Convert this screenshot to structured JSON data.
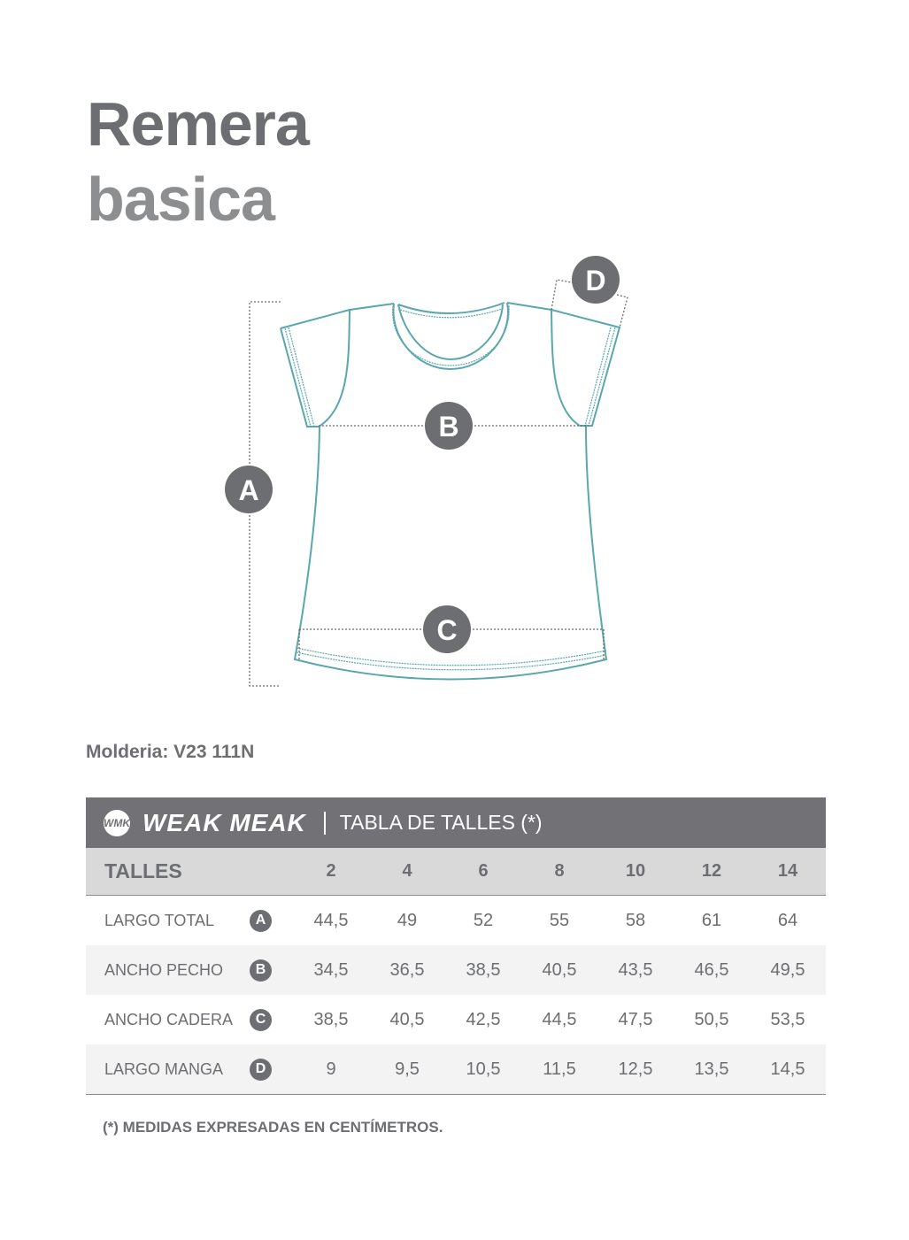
{
  "title": {
    "line1": "Remera",
    "line2": "basica"
  },
  "diagram": {
    "labels": [
      "A",
      "B",
      "C",
      "D"
    ],
    "line_color": "#5aa7ae",
    "badge_color": "#6d6e71"
  },
  "molderia": "Molderia: V23 111N",
  "table": {
    "brand_logo": "WMK",
    "brand": "WEAK MEAK",
    "title": "TABLA DE TALLES (*)",
    "header_label": "TALLES",
    "sizes": [
      "2",
      "4",
      "6",
      "8",
      "10",
      "12",
      "14"
    ],
    "rows": [
      {
        "label": "LARGO TOTAL",
        "badge": "A",
        "values": [
          "44,5",
          "49",
          "52",
          "55",
          "58",
          "61",
          "64"
        ]
      },
      {
        "label": "ANCHO PECHO",
        "badge": "B",
        "values": [
          "34,5",
          "36,5",
          "38,5",
          "40,5",
          "43,5",
          "46,5",
          "49,5"
        ]
      },
      {
        "label": "ANCHO CADERA",
        "badge": "C",
        "values": [
          "38,5",
          "40,5",
          "42,5",
          "44,5",
          "47,5",
          "50,5",
          "53,5"
        ]
      },
      {
        "label": "LARGO MANGA",
        "badge": "D",
        "values": [
          "9",
          "9,5",
          "10,5",
          "11,5",
          "12,5",
          "13,5",
          "14,5"
        ]
      }
    ],
    "header_color": "#727176"
  },
  "note": "(*) MEDIDAS EXPRESADAS EN CENTÍMETROS."
}
